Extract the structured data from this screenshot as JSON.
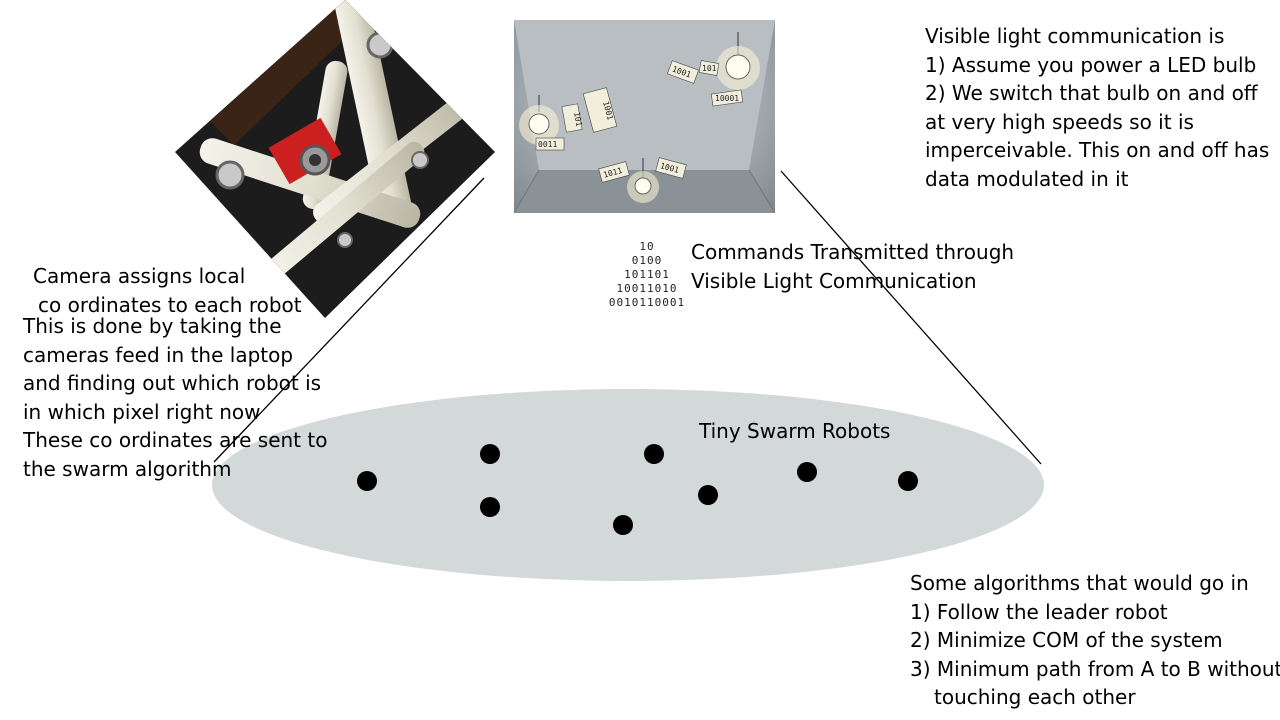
{
  "camera_caption": {
    "line1": "Camera assigns local",
    "line2": "co ordinates to each robot"
  },
  "camera_process": [
    "This is done by taking the",
    "cameras feed in the laptop",
    "and finding out which robot is",
    "in which pixel right now",
    "These co ordinates are sent to",
    "the swarm algorithm"
  ],
  "vlc_description": [
    "Visible light communication is",
    "1) Assume you power a LED bulb",
    "2) We switch that bulb on and off",
    "at very high speeds so it is",
    "imperceivable. This on and off has",
    "data modulated in it"
  ],
  "commands_label": {
    "line1": "Commands Transmitted through",
    "line2": "Visible Light Communication"
  },
  "binary_rows": [
    "10",
    "0100",
    "101101",
    "10011010",
    "0010110001"
  ],
  "swarm_label": "Tiny Swarm Robots",
  "algorithms": {
    "intro": "Some algorithms that would go in",
    "items": [
      "1) Follow the leader robot",
      "2) Minimize COM of the system",
      "3) Minimum path from A to B without"
    ],
    "continuation": "touching each other"
  },
  "room_photo_labels": [
    "1001",
    "101",
    "0011",
    "1001",
    "101",
    "01",
    "1011",
    "10001",
    "1001",
    "1001",
    "101",
    "101"
  ],
  "colors": {
    "arena": "#d3d9d8",
    "robot": "#000000",
    "pipe": "#e6e4d6",
    "bracket": "#cc1f1f",
    "camera_bg": "#1c1c1c"
  }
}
